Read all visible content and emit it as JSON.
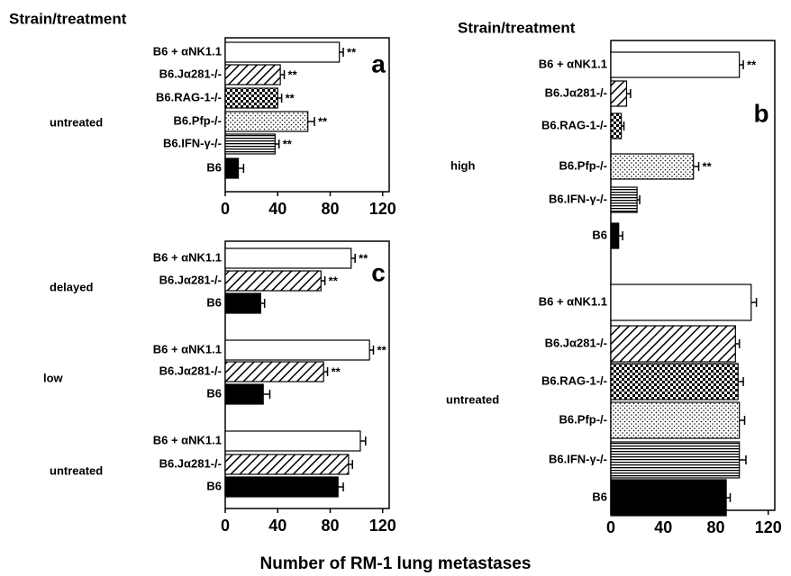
{
  "figure": {
    "header_left": "Strain/treatment",
    "header_right": "Strain/treatment",
    "xlabel": "Number of RM-1 lung metastases"
  },
  "chart_data": [
    {
      "type": "hbar",
      "panel": "a",
      "xlim": [
        0,
        125
      ],
      "xticks": [
        0,
        40,
        80,
        120
      ],
      "groups": [
        {
          "label": "untreated",
          "categories": [
            "B6 + αNK1.1",
            "B6.Jα281-/-",
            "B6.RAG-1-/-",
            "B6.Pfp-/-",
            "B6.IFN-γ-/-",
            "B6"
          ],
          "values": [
            87,
            42,
            40,
            63,
            38,
            10
          ],
          "errors": [
            3,
            3,
            3,
            5,
            3,
            4
          ],
          "fills": [
            "white",
            "hatch",
            "check",
            "dots",
            "hlines",
            "black"
          ],
          "significance": [
            "**",
            "**",
            "**",
            "**",
            "**",
            null
          ]
        }
      ]
    },
    {
      "type": "hbar",
      "panel": "b",
      "xlim": [
        0,
        125
      ],
      "xticks": [
        0,
        40,
        80,
        120
      ],
      "groups": [
        {
          "label": "high",
          "categories": [
            "B6 + αNK1.1",
            "B6.Jα281-/-",
            "B6.RAG-1-/-",
            "B6.Pfp-/-",
            "B6.IFN-γ-/-",
            "B6"
          ],
          "values": [
            98,
            12,
            8,
            63,
            20,
            6
          ],
          "errors": [
            3,
            3,
            2,
            4,
            2,
            3
          ],
          "fills": [
            "white",
            "hatch",
            "check",
            "dots",
            "hlines",
            "black"
          ],
          "significance": [
            "**",
            null,
            null,
            "**",
            null,
            null
          ]
        },
        {
          "label": "untreated",
          "categories": [
            "B6 + αNK1.1",
            "B6.Jα281-/-",
            "B6.RAG-1-/-",
            "B6.Pfp-/-",
            "B6.IFN-γ-/-",
            "B6"
          ],
          "values": [
            107,
            95,
            97,
            98,
            98,
            88
          ],
          "errors": [
            4,
            3,
            4,
            4,
            5,
            3
          ],
          "fills": [
            "white",
            "hatch",
            "check",
            "dots",
            "hlines",
            "black"
          ],
          "significance": [
            null,
            null,
            null,
            null,
            null,
            null
          ]
        }
      ]
    },
    {
      "type": "hbar",
      "panel": "c",
      "xlim": [
        0,
        125
      ],
      "xticks": [
        0,
        40,
        80,
        120
      ],
      "groups": [
        {
          "label": "delayed",
          "categories": [
            "B6 + αNK1.1",
            "B6.Jα281-/-",
            "B6"
          ],
          "values": [
            96,
            73,
            27
          ],
          "errors": [
            3,
            3,
            3
          ],
          "fills": [
            "white",
            "hatch",
            "black"
          ],
          "significance": [
            "**",
            "**",
            null
          ]
        },
        {
          "label": "low",
          "categories": [
            "B6 + αNK1.1",
            "B6.Jα281-/-",
            "B6"
          ],
          "values": [
            110,
            75,
            29
          ],
          "errors": [
            3,
            3,
            5
          ],
          "fills": [
            "white",
            "hatch",
            "black"
          ],
          "significance": [
            "**",
            "**",
            null
          ]
        },
        {
          "label": "untreated",
          "categories": [
            "B6 + αNK1.1",
            "B6.Jα281-/-",
            "B6"
          ],
          "values": [
            103,
            94,
            86
          ],
          "errors": [
            4,
            3,
            4
          ],
          "fills": [
            "white",
            "hatch",
            "black"
          ],
          "significance": [
            null,
            null,
            null
          ]
        }
      ]
    }
  ]
}
